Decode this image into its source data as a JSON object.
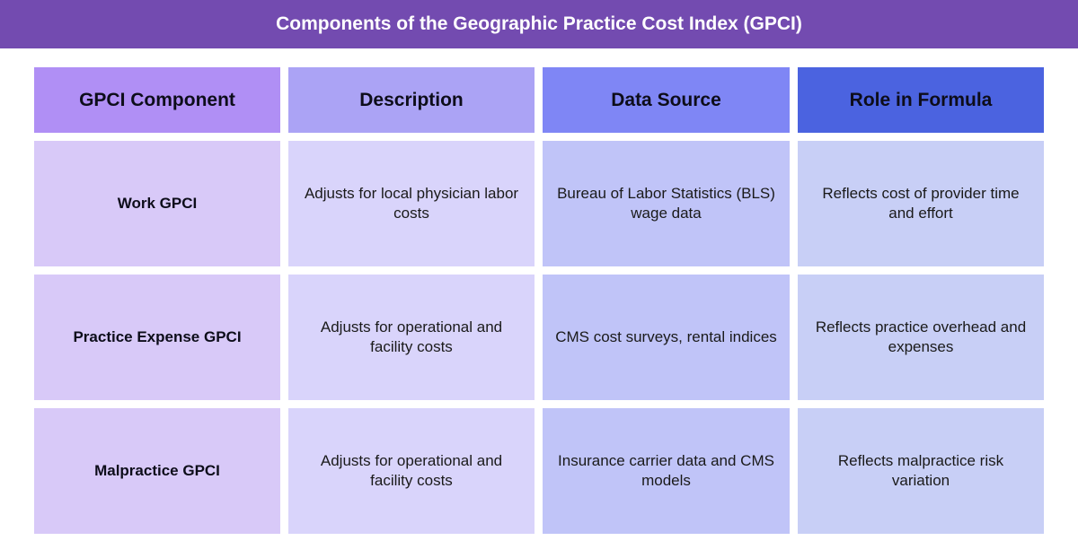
{
  "title": "Components of the Geographic Practice Cost Index (GPCI)",
  "colors": {
    "title_bar": "#734bb0",
    "header": [
      "#b08ff5",
      "#aba3f5",
      "#7f86f5",
      "#4b63e0"
    ],
    "body": [
      "#d8c9f8",
      "#d9d4fb",
      "#c0c4f8",
      "#c8cff6"
    ]
  },
  "table": {
    "headers": [
      "GPCI Component",
      "Description",
      "Data Source",
      "Role in Formula"
    ],
    "rows": [
      [
        "Work GPCI",
        "Adjusts for local physician labor costs",
        "Bureau of Labor Statistics (BLS) wage data",
        "Reflects cost of provider time and effort"
      ],
      [
        "Practice Expense GPCI",
        "Adjusts for operational and facility costs",
        "CMS cost surveys, rental indices",
        "Reflects practice overhead and expenses"
      ],
      [
        "Malpractice GPCI",
        "Adjusts for operational and facility costs",
        "Insurance carrier data and CMS models",
        "Reflects malpractice risk variation"
      ]
    ]
  }
}
